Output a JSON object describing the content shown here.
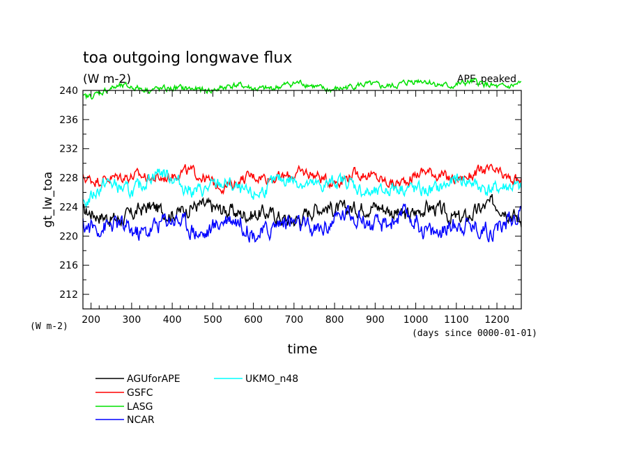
{
  "chart_data": {
    "type": "line",
    "title": "toa outgoing longwave flux",
    "subtitle": "(W m-2)",
    "annotation": "APE_peaked",
    "xlabel": "time",
    "x_units": "(days since 0000-01-01)",
    "ylabel": "gt_lw_toa",
    "y_units": "(W m-2)",
    "xlim": [
      180,
      1260
    ],
    "ylim": [
      210,
      240
    ],
    "x_ticks": [
      "200",
      "300",
      "400",
      "500",
      "600",
      "700",
      "800",
      "900",
      "1000",
      "1100",
      "1200"
    ],
    "y_ticks": [
      "212",
      "216",
      "220",
      "224",
      "228",
      "232",
      "236",
      "240"
    ],
    "grid": false,
    "legend_position": "bottom-left",
    "series": [
      {
        "name": "AGUforAPE",
        "color": "#000000",
        "x": [
          180,
          240,
          300,
          360,
          420,
          480,
          540,
          600,
          660,
          720,
          780,
          840,
          900,
          960,
          1020,
          1080,
          1140,
          1200,
          1260
        ],
        "y": [
          222.5,
          223.5,
          223.0,
          224.0,
          223.5,
          223.0,
          224.0,
          222.5,
          223.5,
          223.0,
          223.5,
          224.0,
          223.0,
          223.5,
          224.0,
          223.0,
          223.5,
          223.5,
          222.5
        ]
      },
      {
        "name": "GSFC",
        "color": "#ff0000",
        "x": [
          180,
          240,
          300,
          360,
          420,
          480,
          540,
          600,
          660,
          720,
          780,
          840,
          900,
          960,
          1020,
          1080,
          1140,
          1200,
          1260
        ],
        "y": [
          228.0,
          228.5,
          227.5,
          228.0,
          228.5,
          228.0,
          227.5,
          228.0,
          228.5,
          228.0,
          227.5,
          228.5,
          228.0,
          228.0,
          228.5,
          228.0,
          228.0,
          228.5,
          228.0
        ]
      },
      {
        "name": "LASG",
        "color": "#00e000",
        "x": [
          180,
          240,
          300,
          360,
          420,
          480,
          540,
          600,
          660,
          720,
          780,
          840,
          900,
          960,
          1020,
          1080,
          1140,
          1200,
          1260
        ],
        "y": [
          239.0,
          240.0,
          240.2,
          240.5,
          240.2,
          240.3,
          240.5,
          240.0,
          240.5,
          240.8,
          240.5,
          240.5,
          240.8,
          240.7,
          241.0,
          240.8,
          241.0,
          240.8,
          241.0
        ]
      },
      {
        "name": "NCAR",
        "color": "#0000ff",
        "x": [
          180,
          240,
          300,
          360,
          420,
          480,
          540,
          600,
          660,
          720,
          780,
          840,
          900,
          960,
          1020,
          1080,
          1140,
          1200,
          1260
        ],
        "y": [
          222.0,
          221.0,
          221.5,
          222.0,
          221.5,
          220.5,
          221.5,
          221.0,
          222.0,
          221.5,
          222.0,
          222.0,
          221.5,
          222.0,
          221.5,
          222.0,
          221.0,
          221.5,
          222.0
        ]
      },
      {
        "name": "UKMO_n48",
        "color": "#00ffff",
        "x": [
          180,
          240,
          300,
          360,
          420,
          480,
          540,
          600,
          660,
          720,
          780,
          840,
          900,
          960,
          1020,
          1080,
          1140,
          1200,
          1260
        ],
        "y": [
          225.0,
          227.0,
          226.5,
          228.0,
          227.0,
          226.5,
          227.0,
          226.5,
          227.0,
          227.5,
          226.5,
          227.0,
          226.5,
          226.5,
          227.0,
          226.5,
          227.0,
          226.5,
          226.0
        ]
      }
    ]
  }
}
